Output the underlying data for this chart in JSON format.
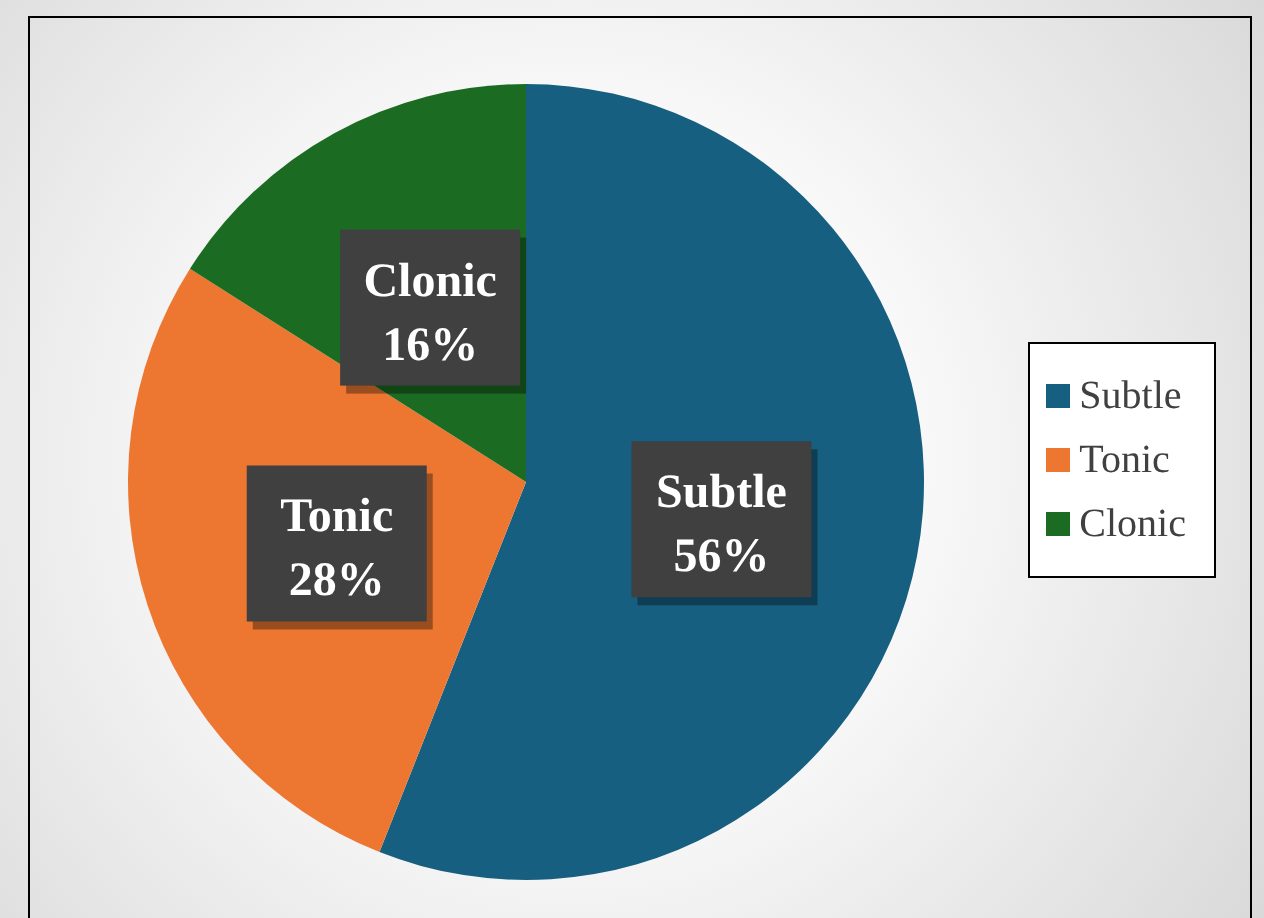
{
  "chart_data": {
    "type": "pie",
    "categories": [
      "Subtle",
      "Tonic",
      "Clonic"
    ],
    "values": [
      56,
      28,
      16
    ],
    "value_labels": [
      "56%",
      "28%",
      "16%"
    ],
    "colors": [
      "#175f80",
      "#ed7731",
      "#1c6b22"
    ],
    "legend": "right"
  }
}
